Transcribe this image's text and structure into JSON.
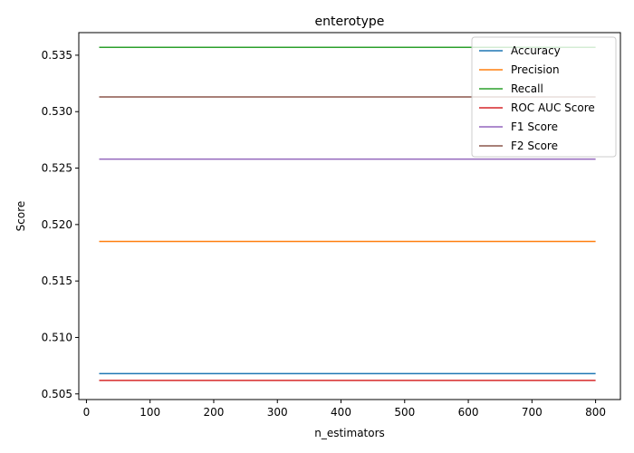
{
  "chart_data": {
    "type": "line",
    "title": "enterotype",
    "xlabel": "n_estimators",
    "ylabel": "Score",
    "xlim": [
      -12,
      839
    ],
    "ylim": [
      0.5045,
      0.537
    ],
    "xticks": [
      0,
      100,
      200,
      300,
      400,
      500,
      600,
      700,
      800
    ],
    "yticks": [
      0.505,
      0.51,
      0.515,
      0.52,
      0.525,
      0.53,
      0.535
    ],
    "x": [
      20,
      800
    ],
    "legend_position": "top-right",
    "grid": false,
    "series": [
      {
        "name": "Accuracy",
        "color": "#1f77b4",
        "values": [
          0.5068,
          0.5068
        ]
      },
      {
        "name": "Precision",
        "color": "#ff7f0e",
        "values": [
          0.5185,
          0.5185
        ]
      },
      {
        "name": "Recall",
        "color": "#2ca02c",
        "values": [
          0.5357,
          0.5357
        ]
      },
      {
        "name": "ROC AUC Score",
        "color": "#d62728",
        "values": [
          0.5062,
          0.5062
        ]
      },
      {
        "name": "F1 Score",
        "color": "#9467bd",
        "values": [
          0.5258,
          0.5258
        ]
      },
      {
        "name": "F2 Score",
        "color": "#8c564b",
        "values": [
          0.5313,
          0.5313
        ]
      }
    ]
  }
}
